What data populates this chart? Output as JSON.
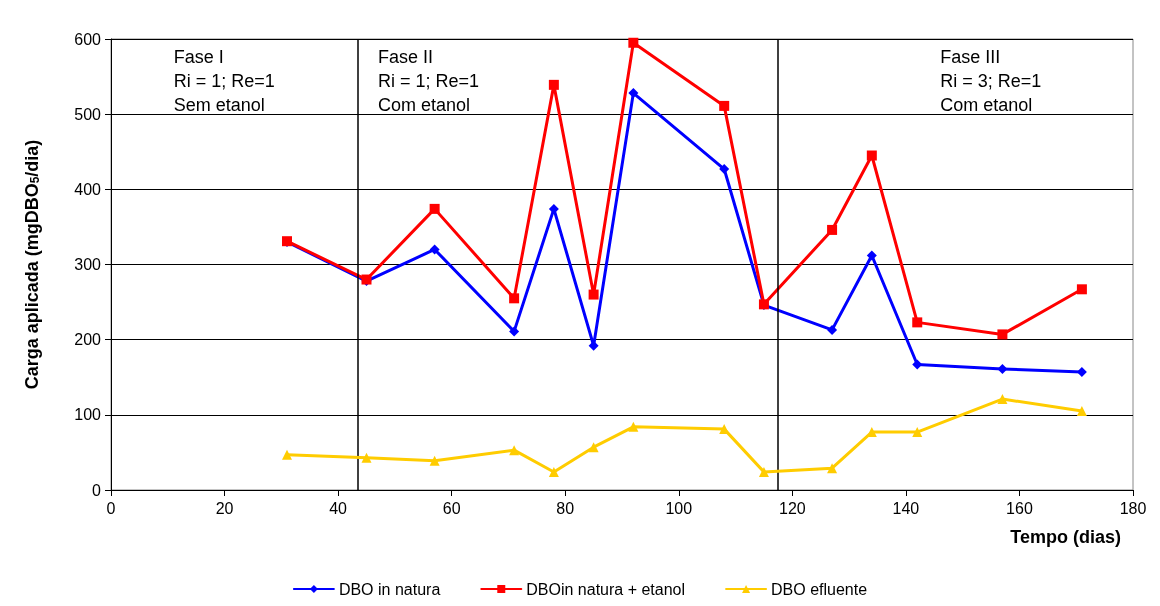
{
  "chart_data": {
    "type": "line",
    "x": [
      31,
      45,
      57,
      71,
      78,
      85,
      92,
      108,
      115,
      127,
      134,
      142,
      157,
      171
    ],
    "series": [
      {
        "name": "DBO in natura",
        "color": "#0000ff",
        "marker": "diamond",
        "values": [
          330,
          278,
          320,
          211,
          374,
          192,
          528,
          427,
          246,
          213,
          312,
          167,
          161,
          157
        ]
      },
      {
        "name": "DBOin natura + etanol",
        "color": "#ff0000",
        "marker": "square",
        "values": [
          331,
          280,
          374,
          255,
          539,
          260,
          595,
          511,
          247,
          346,
          445,
          223,
          207,
          267
        ]
      },
      {
        "name": "DBO efluente",
        "color": "#ffcc00",
        "marker": "triangle",
        "values": [
          47,
          43,
          39,
          53,
          24,
          57,
          84,
          81,
          24,
          29,
          77,
          77,
          121,
          105
        ]
      }
    ],
    "xlabel": "Tempo (dias)",
    "ylabel": "Carga aplicada (mgDBO$_{5}$/dia)",
    "xlim": [
      0,
      180
    ],
    "xticks": [
      0,
      20,
      40,
      60,
      80,
      100,
      120,
      140,
      160,
      180
    ],
    "ylim": [
      0,
      600
    ],
    "yticks": [
      0,
      100,
      200,
      300,
      400,
      500,
      600
    ],
    "grid": "y",
    "legend": "bottom",
    "line_style": "solid",
    "ref_lines": [
      {
        "axis": "x",
        "value": 43.5,
        "label": null,
        "color": "#000000"
      },
      {
        "axis": "x",
        "value": 117.5,
        "label": null,
        "color": "#000000"
      }
    ],
    "annotations": [
      "Fase I\nRi = 1; Re=1\nSem etanol",
      "Fase II\nRi = 1; Re=1\nCom etanol",
      "Fase III\nRi = 3; Re=1\nCom etanol"
    ]
  }
}
